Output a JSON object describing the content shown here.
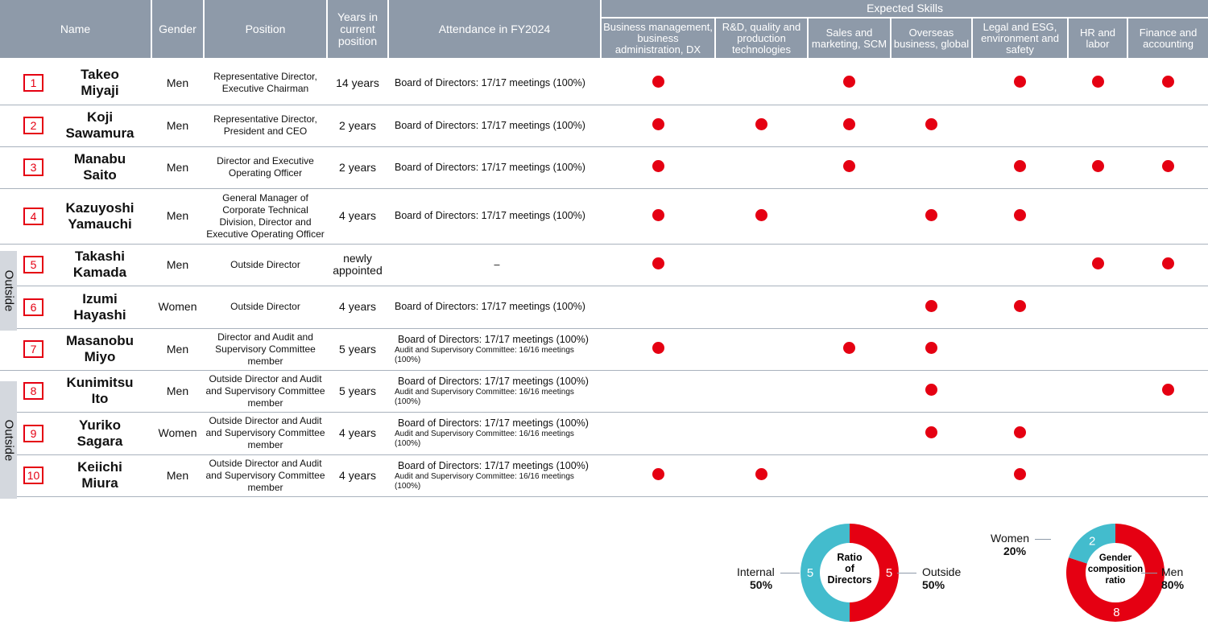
{
  "header": {
    "name": "Name",
    "gender": "Gender",
    "position": "Position",
    "years": "Years in current position",
    "attendance": "Attendance in FY2024",
    "expected_skills": "Expected Skills",
    "skills": [
      "Business management, business administration, DX",
      "R&D, quality and production technologies",
      "Sales and marketing, SCM",
      "Overseas business, global",
      "Legal and ESG, environment and safety",
      "HR and labor",
      "Finance and accounting"
    ]
  },
  "directors": [
    {
      "no": "1",
      "first": "Takeo",
      "last": "Miyaji",
      "gender": "Men",
      "position": "Representative Director, Executive Chairman",
      "years": "14 years",
      "attendance": "Board of Directors: 17/17 meetings (100%)",
      "audit": "",
      "skills": [
        1,
        0,
        1,
        0,
        1,
        1,
        1
      ]
    },
    {
      "no": "2",
      "first": "Koji",
      "last": "Sawamura",
      "gender": "Men",
      "position": "Representative Director, President and CEO",
      "years": "2 years",
      "attendance": "Board of Directors: 17/17 meetings (100%)",
      "audit": "",
      "skills": [
        1,
        1,
        1,
        1,
        0,
        0,
        0
      ]
    },
    {
      "no": "3",
      "first": "Manabu",
      "last": "Saito",
      "gender": "Men",
      "position": "Director and Executive Operating Officer",
      "years": "2 years",
      "attendance": "Board of Directors: 17/17 meetings (100%)",
      "audit": "",
      "skills": [
        1,
        0,
        1,
        0,
        1,
        1,
        1
      ]
    },
    {
      "no": "4",
      "first": "Kazuyoshi",
      "last": "Yamauchi",
      "gender": "Men",
      "position": "General Manager of Corporate Technical Division, Director and Executive Operating Officer",
      "years": "4 years",
      "attendance": "Board of Directors: 17/17 meetings (100%)",
      "audit": "",
      "skills": [
        1,
        1,
        0,
        1,
        1,
        0,
        0
      ]
    },
    {
      "no": "5",
      "first": "Takashi",
      "last": "Kamada",
      "gender": "Men",
      "position": "Outside Director",
      "years": "newly appointed",
      "attendance": "–",
      "audit": "",
      "skills": [
        1,
        0,
        0,
        0,
        0,
        1,
        1
      ]
    },
    {
      "no": "6",
      "first": "Izumi",
      "last": "Hayashi",
      "gender": "Women",
      "position": "Outside Director",
      "years": "4 years",
      "attendance": "Board of Directors: 17/17 meetings (100%)",
      "audit": "",
      "skills": [
        0,
        0,
        0,
        1,
        1,
        0,
        0
      ]
    },
    {
      "no": "7",
      "first": "Masanobu",
      "last": "Miyo",
      "gender": "Men",
      "position": "Director and Audit and Supervisory Committee member",
      "years": "5 years",
      "attendance": "Board of Directors: 17/17 meetings (100%)",
      "audit": "Audit and Supervisory Committee: 16/16 meetings (100%)",
      "skills": [
        1,
        0,
        1,
        1,
        0,
        0,
        0
      ]
    },
    {
      "no": "8",
      "first": "Kunimitsu",
      "last": "Ito",
      "gender": "Men",
      "position": "Outside Director and Audit and Supervisory Committee member",
      "years": "5 years",
      "attendance": "Board of Directors: 17/17 meetings (100%)",
      "audit": "Audit and Supervisory Committee: 16/16 meetings (100%)",
      "skills": [
        0,
        0,
        0,
        1,
        0,
        0,
        1
      ]
    },
    {
      "no": "9",
      "first": "Yuriko",
      "last": "Sagara",
      "gender": "Women",
      "position": "Outside Director and Audit and Supervisory Committee member",
      "years": "4 years",
      "attendance": "Board of Directors: 17/17 meetings (100%)",
      "audit": "Audit and Supervisory Committee: 16/16 meetings (100%)",
      "skills": [
        0,
        0,
        0,
        1,
        1,
        0,
        0
      ]
    },
    {
      "no": "10",
      "first": "Keiichi",
      "last": "Miura",
      "gender": "Men",
      "position": "Outside Director and Audit and Supervisory Committee member",
      "years": "4 years",
      "attendance": "Board of Directors: 17/17 meetings (100%)",
      "audit": "Audit and Supervisory Committee: 16/16 meetings (100%)",
      "skills": [
        1,
        1,
        0,
        0,
        1,
        0,
        0
      ]
    }
  ],
  "outside_label": "Outside",
  "colors": {
    "header": "#8e9aa9",
    "red": "#e50012",
    "teal": "#43bccd"
  },
  "chart_data": [
    {
      "type": "pie",
      "title": "Ratio of Directors",
      "slices": [
        {
          "label": "Outside",
          "value": 5,
          "percent": "50%",
          "color": "#e50012"
        },
        {
          "label": "Internal",
          "value": 5,
          "percent": "50%",
          "color": "#43bccd"
        }
      ]
    },
    {
      "type": "pie",
      "title": "Gender composition ratio",
      "slices": [
        {
          "label": "Men",
          "value": 8,
          "percent": "80%",
          "color": "#e50012"
        },
        {
          "label": "Women",
          "value": 2,
          "percent": "20%",
          "color": "#43bccd"
        }
      ]
    }
  ]
}
